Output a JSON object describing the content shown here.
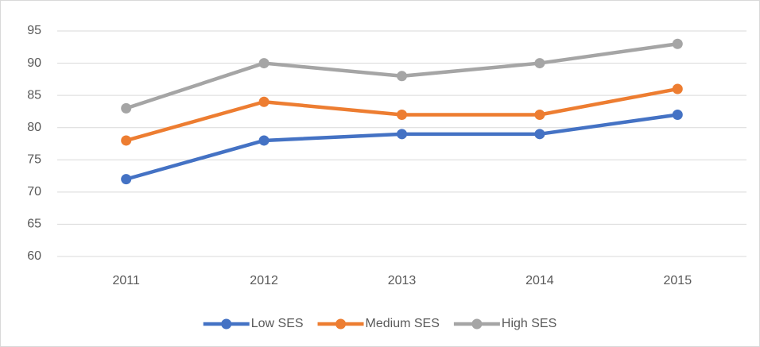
{
  "chart_data": {
    "type": "line",
    "categories": [
      "2011",
      "2012",
      "2013",
      "2014",
      "2015"
    ],
    "series": [
      {
        "name": "Low SES",
        "color": "#4472c4",
        "values": [
          72,
          78,
          79,
          79,
          82
        ]
      },
      {
        "name": "Medium SES",
        "color": "#ed7d31",
        "values": [
          78,
          84,
          82,
          82,
          86
        ]
      },
      {
        "name": "High SES",
        "color": "#a5a5a5",
        "values": [
          83,
          90,
          88,
          90,
          93
        ]
      }
    ],
    "ylim": [
      60,
      95
    ],
    "yticks": [
      60,
      65,
      70,
      75,
      80,
      85,
      90,
      95
    ],
    "grid": true,
    "legend": "bottom"
  }
}
